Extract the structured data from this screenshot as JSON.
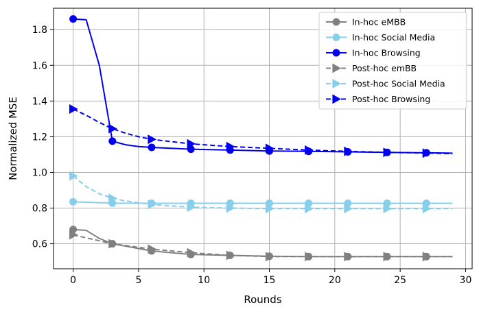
{
  "chart_data": {
    "type": "line",
    "title": "",
    "xlabel": "Rounds",
    "ylabel": "Normalized MSE",
    "xlim": [
      -1.5,
      30.5
    ],
    "ylim": [
      0.46,
      1.92
    ],
    "xticks": [
      0,
      5,
      10,
      15,
      20,
      25,
      30
    ],
    "yticks": [
      0.6,
      0.8,
      1.0,
      1.2,
      1.4,
      1.6,
      1.8
    ],
    "xtick_labels": [
      "0",
      "5",
      "10",
      "15",
      "20",
      "25",
      "30"
    ],
    "ytick_labels": [
      "0.6",
      "0.8",
      "1.0",
      "1.2",
      "1.4",
      "1.6",
      "1.8"
    ],
    "grid": true,
    "legend_position": "top-right",
    "series": [
      {
        "name": "In-hoc eMBB",
        "color": "#808080",
        "dash": "solid",
        "marker": "circle",
        "x": [
          0,
          1,
          2,
          3,
          6,
          9,
          12,
          15,
          18,
          21,
          24,
          27,
          29
        ],
        "y": [
          0.68,
          0.675,
          0.63,
          0.6,
          0.56,
          0.54,
          0.535,
          0.53,
          0.528,
          0.528,
          0.528,
          0.528,
          0.528
        ],
        "marker_x": [
          0,
          3,
          6,
          9,
          12,
          15,
          18,
          21,
          24,
          27
        ]
      },
      {
        "name": "In-hoc Social Media",
        "color": "#87CEEB",
        "dash": "solid",
        "marker": "circle",
        "x": [
          0,
          3,
          6,
          9,
          12,
          15,
          18,
          21,
          24,
          27,
          29
        ],
        "y": [
          0.835,
          0.828,
          0.827,
          0.827,
          0.827,
          0.827,
          0.827,
          0.827,
          0.827,
          0.827,
          0.827
        ],
        "marker_x": [
          0,
          3,
          6,
          9,
          12,
          15,
          18,
          21,
          24,
          27
        ]
      },
      {
        "name": "In-hoc Browsing",
        "color": "#0000EE",
        "dash": "solid",
        "marker": "circle",
        "x": [
          0,
          1,
          2,
          3,
          4,
          5,
          6,
          9,
          12,
          15,
          18,
          21,
          24,
          27,
          29
        ],
        "y": [
          1.86,
          1.855,
          1.6,
          1.175,
          1.155,
          1.145,
          1.14,
          1.13,
          1.125,
          1.12,
          1.118,
          1.115,
          1.112,
          1.11,
          1.108
        ],
        "marker_x": [
          0,
          3,
          6,
          9,
          12,
          15,
          18,
          21,
          24,
          27
        ]
      },
      {
        "name": "Post-hoc emBB",
        "color": "#808080",
        "dash": "dashed",
        "marker": "triangle-right",
        "x": [
          0,
          3,
          6,
          9,
          12,
          15,
          18,
          21,
          24,
          27,
          29
        ],
        "y": [
          0.65,
          0.6,
          0.57,
          0.55,
          0.535,
          0.528,
          0.528,
          0.528,
          0.528,
          0.528,
          0.528
        ],
        "marker_x": [
          0,
          3,
          6,
          9,
          12,
          15,
          18,
          21,
          24,
          27
        ]
      },
      {
        "name": "Post-hoc Social Media",
        "color": "#87CEEB",
        "dash": "dashed",
        "marker": "triangle-right",
        "x": [
          0,
          1,
          2,
          3,
          4,
          5,
          6,
          9,
          12,
          15,
          18,
          21,
          24,
          27,
          29
        ],
        "y": [
          0.98,
          0.92,
          0.88,
          0.855,
          0.84,
          0.83,
          0.82,
          0.805,
          0.8,
          0.797,
          0.797,
          0.797,
          0.797,
          0.797,
          0.797
        ],
        "marker_x": [
          0,
          3,
          6,
          9,
          12,
          15,
          18,
          21,
          24,
          27
        ]
      },
      {
        "name": "Post-hoc Browsing",
        "color": "#0000EE",
        "dash": "dashed",
        "marker": "triangle-right",
        "x": [
          0,
          1,
          2,
          3,
          4,
          5,
          6,
          9,
          12,
          15,
          18,
          21,
          24,
          27,
          29
        ],
        "y": [
          1.355,
          1.32,
          1.28,
          1.245,
          1.22,
          1.2,
          1.185,
          1.16,
          1.145,
          1.135,
          1.125,
          1.118,
          1.112,
          1.108,
          1.105
        ],
        "marker_x": [
          0,
          3,
          6,
          9,
          12,
          15,
          18,
          21,
          24,
          27
        ]
      }
    ]
  }
}
